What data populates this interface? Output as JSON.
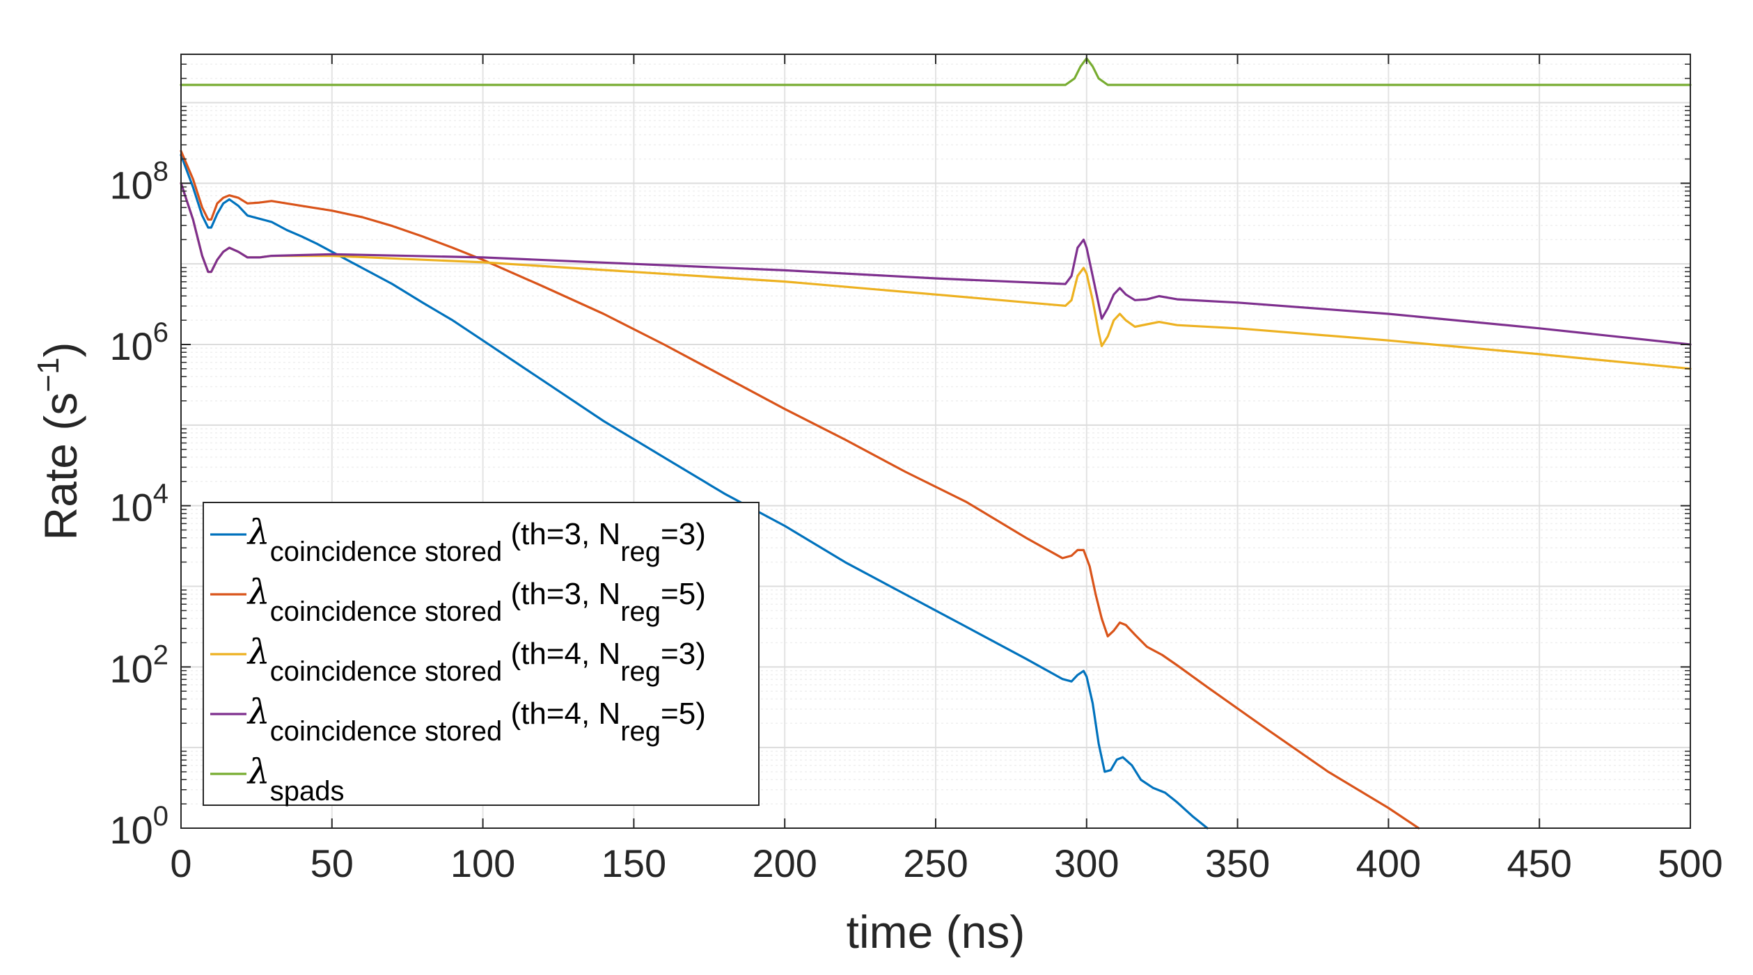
{
  "chart_data": {
    "type": "line",
    "title": "",
    "xlabel": "time (ns)",
    "ylabel_main": "Rate (s",
    "ylabel_sup": "−1",
    "ylabel_close": ")",
    "xlim": [
      0,
      500
    ],
    "ylim_log10": [
      0,
      9.6
    ],
    "yscale": "log",
    "grid": true,
    "x_ticks": [
      0,
      50,
      100,
      150,
      200,
      250,
      300,
      350,
      400,
      450,
      500
    ],
    "x_tick_labels": [
      "0",
      "50",
      "100",
      "150",
      "200",
      "250",
      "300",
      "350",
      "400",
      "450",
      "500"
    ],
    "y_ticks_log10": [
      0,
      2,
      4,
      6,
      8
    ],
    "y_tick_labels": [
      {
        "base": "10",
        "exp": "0"
      },
      {
        "base": "10",
        "exp": "2"
      },
      {
        "base": "10",
        "exp": "4"
      },
      {
        "base": "10",
        "exp": "6"
      },
      {
        "base": "10",
        "exp": "8"
      }
    ],
    "legend_position": "lower-left",
    "series": [
      {
        "name": "λcoincidence stored (th=3, Nreg=3)",
        "legend": {
          "symbol": "λ",
          "sub": "coincidence stored",
          "text": " (th=3, N",
          "sub2": "reg",
          "end": "=3)"
        },
        "color": "#0072BD",
        "x_log10": [
          [
            0,
            8.35
          ],
          [
            4,
            7.95
          ],
          [
            7,
            7.6
          ],
          [
            9,
            7.45
          ],
          [
            10,
            7.45
          ],
          [
            12,
            7.62
          ],
          [
            14,
            7.75
          ],
          [
            16,
            7.8
          ],
          [
            19,
            7.72
          ],
          [
            22,
            7.6
          ],
          [
            26,
            7.56
          ],
          [
            30,
            7.52
          ],
          [
            35,
            7.42
          ],
          [
            40,
            7.34
          ],
          [
            45,
            7.25
          ],
          [
            50,
            7.15
          ],
          [
            60,
            6.95
          ],
          [
            70,
            6.75
          ],
          [
            80,
            6.52
          ],
          [
            90,
            6.3
          ],
          [
            100,
            6.05
          ],
          [
            120,
            5.55
          ],
          [
            140,
            5.05
          ],
          [
            160,
            4.6
          ],
          [
            180,
            4.15
          ],
          [
            200,
            3.75
          ],
          [
            220,
            3.3
          ],
          [
            240,
            2.9
          ],
          [
            260,
            2.5
          ],
          [
            280,
            2.1
          ],
          [
            292,
            1.85
          ],
          [
            295,
            1.82
          ],
          [
            297,
            1.9
          ],
          [
            299,
            1.95
          ],
          [
            300,
            1.88
          ],
          [
            302,
            1.55
          ],
          [
            304,
            1.05
          ],
          [
            306,
            0.7
          ],
          [
            308,
            0.72
          ],
          [
            310,
            0.85
          ],
          [
            312,
            0.88
          ],
          [
            315,
            0.78
          ],
          [
            318,
            0.6
          ],
          [
            322,
            0.5
          ],
          [
            326,
            0.44
          ],
          [
            330,
            0.32
          ],
          [
            335,
            0.15
          ],
          [
            340,
            0.0
          ]
        ]
      },
      {
        "name": "λcoincidence stored (th=3, Nreg=5)",
        "legend": {
          "symbol": "λ",
          "sub": "coincidence stored",
          "text": " (th=3, N",
          "sub2": "reg",
          "end": "=5)"
        },
        "color": "#D95319",
        "x_log10": [
          [
            0,
            8.4
          ],
          [
            4,
            8.05
          ],
          [
            7,
            7.7
          ],
          [
            9,
            7.55
          ],
          [
            10,
            7.55
          ],
          [
            12,
            7.75
          ],
          [
            14,
            7.82
          ],
          [
            16,
            7.85
          ],
          [
            19,
            7.82
          ],
          [
            22,
            7.75
          ],
          [
            26,
            7.76
          ],
          [
            30,
            7.78
          ],
          [
            40,
            7.72
          ],
          [
            50,
            7.66
          ],
          [
            60,
            7.58
          ],
          [
            70,
            7.47
          ],
          [
            80,
            7.34
          ],
          [
            90,
            7.2
          ],
          [
            100,
            7.05
          ],
          [
            120,
            6.72
          ],
          [
            140,
            6.38
          ],
          [
            160,
            6.0
          ],
          [
            180,
            5.6
          ],
          [
            200,
            5.2
          ],
          [
            220,
            4.82
          ],
          [
            240,
            4.42
          ],
          [
            260,
            4.05
          ],
          [
            280,
            3.6
          ],
          [
            292,
            3.35
          ],
          [
            295,
            3.38
          ],
          [
            297,
            3.45
          ],
          [
            299,
            3.45
          ],
          [
            301,
            3.25
          ],
          [
            303,
            2.9
          ],
          [
            305,
            2.6
          ],
          [
            307,
            2.38
          ],
          [
            309,
            2.45
          ],
          [
            311,
            2.55
          ],
          [
            313,
            2.52
          ],
          [
            316,
            2.4
          ],
          [
            320,
            2.25
          ],
          [
            325,
            2.15
          ],
          [
            330,
            2.02
          ],
          [
            340,
            1.75
          ],
          [
            360,
            1.22
          ],
          [
            380,
            0.7
          ],
          [
            400,
            0.25
          ],
          [
            410,
            0.0
          ]
        ]
      },
      {
        "name": "λcoincidence stored (th=4, Nreg=3)",
        "legend": {
          "symbol": "λ",
          "sub": "coincidence stored",
          "text": " (th=4, N",
          "sub2": "reg",
          "end": "=3)"
        },
        "color": "#EDB120",
        "x_log10": [
          [
            0,
            8.0
          ],
          [
            4,
            7.55
          ],
          [
            7,
            7.1
          ],
          [
            9,
            6.9
          ],
          [
            10,
            6.9
          ],
          [
            12,
            7.05
          ],
          [
            14,
            7.15
          ],
          [
            16,
            7.2
          ],
          [
            19,
            7.15
          ],
          [
            22,
            7.08
          ],
          [
            26,
            7.08
          ],
          [
            30,
            7.1
          ],
          [
            50,
            7.1
          ],
          [
            100,
            7.02
          ],
          [
            150,
            6.9
          ],
          [
            200,
            6.78
          ],
          [
            250,
            6.62
          ],
          [
            293,
            6.48
          ],
          [
            295,
            6.55
          ],
          [
            297,
            6.85
          ],
          [
            299,
            6.95
          ],
          [
            300,
            6.88
          ],
          [
            302,
            6.55
          ],
          [
            304,
            6.15
          ],
          [
            305,
            5.98
          ],
          [
            307,
            6.1
          ],
          [
            309,
            6.3
          ],
          [
            311,
            6.38
          ],
          [
            313,
            6.3
          ],
          [
            316,
            6.22
          ],
          [
            320,
            6.25
          ],
          [
            324,
            6.28
          ],
          [
            330,
            6.24
          ],
          [
            350,
            6.2
          ],
          [
            400,
            6.05
          ],
          [
            450,
            5.88
          ],
          [
            500,
            5.7
          ]
        ]
      },
      {
        "name": "λcoincidence stored (th=4, Nreg=5)",
        "legend": {
          "symbol": "λ",
          "sub": "coincidence stored",
          "text": " (th=4, N",
          "sub2": "reg",
          "end": "=5)"
        },
        "color": "#7E2F8E",
        "x_log10": [
          [
            0,
            8.0
          ],
          [
            4,
            7.55
          ],
          [
            7,
            7.1
          ],
          [
            9,
            6.9
          ],
          [
            10,
            6.9
          ],
          [
            12,
            7.05
          ],
          [
            14,
            7.15
          ],
          [
            16,
            7.2
          ],
          [
            19,
            7.15
          ],
          [
            22,
            7.08
          ],
          [
            26,
            7.08
          ],
          [
            30,
            7.1
          ],
          [
            50,
            7.12
          ],
          [
            100,
            7.08
          ],
          [
            150,
            7.0
          ],
          [
            200,
            6.92
          ],
          [
            250,
            6.82
          ],
          [
            293,
            6.75
          ],
          [
            295,
            6.85
          ],
          [
            297,
            7.2
          ],
          [
            299,
            7.3
          ],
          [
            300,
            7.2
          ],
          [
            302,
            6.85
          ],
          [
            304,
            6.5
          ],
          [
            305,
            6.32
          ],
          [
            307,
            6.45
          ],
          [
            309,
            6.62
          ],
          [
            311,
            6.7
          ],
          [
            313,
            6.62
          ],
          [
            316,
            6.55
          ],
          [
            320,
            6.56
          ],
          [
            324,
            6.6
          ],
          [
            330,
            6.56
          ],
          [
            350,
            6.52
          ],
          [
            400,
            6.38
          ],
          [
            450,
            6.2
          ],
          [
            500,
            6.0
          ]
        ]
      },
      {
        "name": "λspads",
        "legend": {
          "symbol": "λ",
          "sub": "spads",
          "text": "",
          "sub2": "",
          "end": ""
        },
        "color": "#77AC30",
        "x_log10": [
          [
            0,
            9.22
          ],
          [
            293,
            9.22
          ],
          [
            296,
            9.3
          ],
          [
            298,
            9.45
          ],
          [
            300,
            9.55
          ],
          [
            302,
            9.45
          ],
          [
            304,
            9.3
          ],
          [
            307,
            9.22
          ],
          [
            500,
            9.22
          ]
        ]
      }
    ]
  }
}
